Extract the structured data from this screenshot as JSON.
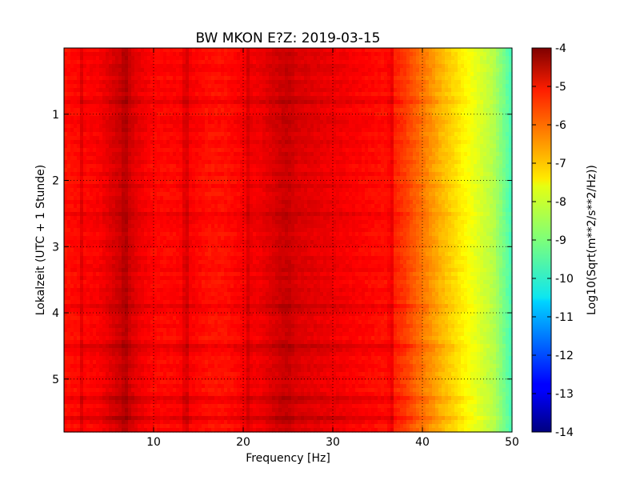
{
  "chart_data": {
    "type": "heatmap",
    "title": "BW MKON E?Z: 2019-03-15",
    "xlabel": "Frequency [Hz]",
    "ylabel": "Lokalzeit (UTC + 1 Stunde)",
    "xlim": [
      0,
      50
    ],
    "ylim": [
      0,
      5.8
    ],
    "y_inverted": true,
    "x_ticks": [
      "10",
      "20",
      "30",
      "40",
      "50"
    ],
    "y_ticks": [
      "1",
      "2",
      "3",
      "4",
      "5"
    ],
    "grid": true,
    "colormap": "jet",
    "colorbar": {
      "label": "Log10(Sqrt(m**2/s**2/Hz))",
      "range": [
        -14,
        -4
      ],
      "ticks": [
        "-4",
        "-5",
        "-6",
        "-7",
        "-8",
        "-9",
        "-10",
        "-11",
        "-12",
        "-13",
        "-14"
      ]
    },
    "frequency_profile": {
      "freq": [
        0,
        2,
        4,
        6,
        7,
        8,
        10,
        12,
        14,
        16,
        18,
        20,
        22,
        24,
        25,
        26,
        28,
        30,
        32,
        34,
        36,
        38,
        40,
        42,
        44,
        46,
        48,
        50
      ],
      "value": [
        -5.4,
        -5.3,
        -5.2,
        -4.8,
        -4.7,
        -5.0,
        -5.3,
        -5.3,
        -5.2,
        -5.4,
        -5.4,
        -5.2,
        -5.1,
        -4.8,
        -4.7,
        -4.9,
        -5.0,
        -5.1,
        -5.2,
        -5.3,
        -5.4,
        -5.8,
        -6.4,
        -7.0,
        -7.5,
        -8.0,
        -8.5,
        -9.6
      ]
    },
    "time_bands": [
      {
        "time": 0.8,
        "strength": 0.35
      },
      {
        "time": 1.1,
        "strength": 0.2
      },
      {
        "time": 2.5,
        "strength": 0.15
      },
      {
        "time": 3.9,
        "strength": 0.2
      },
      {
        "time": 4.5,
        "strength": 0.4
      },
      {
        "time": 5.3,
        "strength": 0.25
      },
      {
        "time": 5.6,
        "strength": 0.3
      }
    ],
    "line_features": [
      {
        "freq": 2.0,
        "strength": 0.35
      },
      {
        "freq": 6.8,
        "strength": 0.3
      },
      {
        "freq": 13.6,
        "strength": 0.55
      },
      {
        "freq": 20.6,
        "strength": 0.35
      },
      {
        "freq": 36.5,
        "strength": 0.6
      }
    ]
  }
}
